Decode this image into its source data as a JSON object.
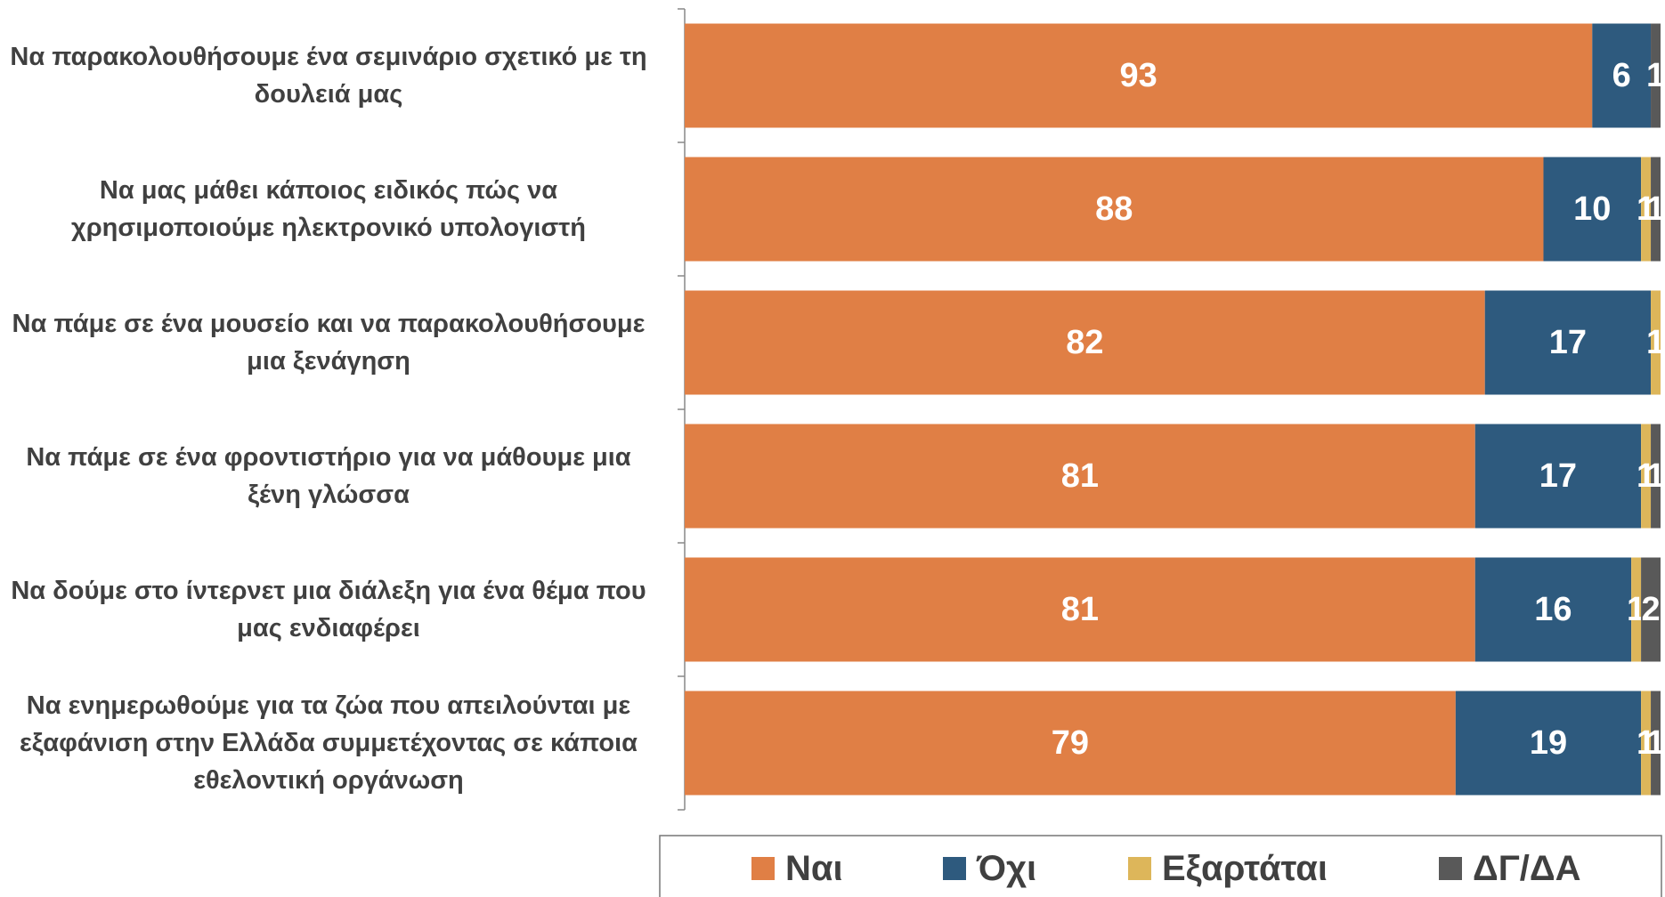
{
  "chart_data": {
    "type": "stacked_bar_horizontal",
    "categories": [
      "Να παρακολουθήσουμε ένα σεμινάριο σχετικό με τη δουλειά μας",
      "Να μας μάθει κάποιος ειδικός πώς να χρησιμοποιούμε ηλεκτρονικό υπολογιστή",
      "Να πάμε σε ένα μουσείο και να παρακολουθήσουμε μια ξενάγηση",
      "Να πάμε σε ένα φροντιστήριο για να μάθουμε μια ξένη γλώσσα",
      "Να δούμε στο ίντερνετ μια διάλεξη για ένα θέμα που μας ενδιαφέρει",
      "Να ενημερωθούμε για τα ζώα που απειλούνται με εξαφάνιση στην  Ελλάδα συμμετέχοντας σε κάποια εθελοντική οργάνωση"
    ],
    "series": [
      {
        "name": "Ναι",
        "color": "#E07F45",
        "values": [
          93,
          88,
          82,
          81,
          81,
          79
        ]
      },
      {
        "name": "Όχι",
        "color": "#2E5A7E",
        "values": [
          6,
          10,
          17,
          17,
          16,
          19
        ]
      },
      {
        "name": "Εξαρτάται",
        "color": "#DDB65A",
        "values": [
          0,
          1,
          1,
          1,
          1,
          1
        ]
      },
      {
        "name": "ΔΓ/ΔΑ",
        "color": "#595959",
        "values": [
          1,
          1,
          0,
          1,
          2,
          1
        ]
      }
    ],
    "xlim": [
      0,
      100
    ],
    "legend": "bottom"
  }
}
